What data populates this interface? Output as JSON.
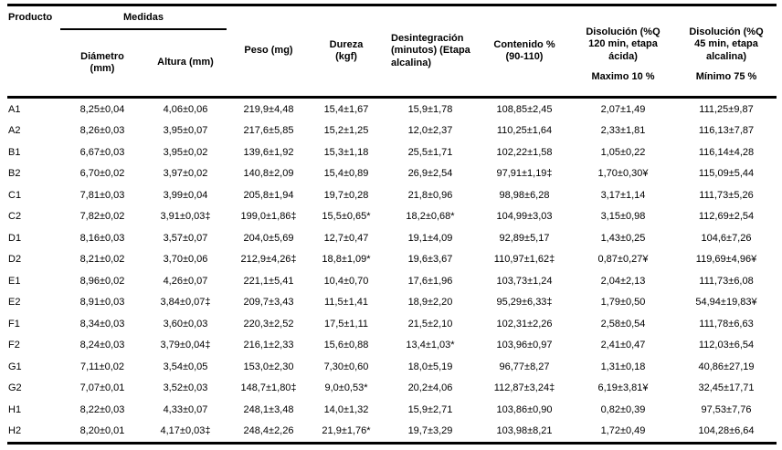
{
  "table": {
    "headers": {
      "producto": "Producto",
      "medidas": "Medidas",
      "diametro": "Diámetro\n(mm)",
      "altura": "Altura (mm)",
      "peso": "Peso (mg)",
      "dureza": "Dureza\n(kgf)",
      "desintegracion": "Desintegración\n(minutos) (Etapa\nalcalina)",
      "contenido": "Contenido %\n(90-110)",
      "disolucion_acida": "Disolución (%Q\n120 min, etapa\nácida)",
      "disolucion_acida_limit": "Maximo 10 %",
      "disolucion_alcalina": "Disolución (%Q\n45 min, etapa\nalcalina)",
      "disolucion_alcalina_limit": "Mínimo 75 %"
    },
    "column_keys": [
      "producto",
      "diametro",
      "altura",
      "peso",
      "dureza",
      "desintegracion",
      "contenido",
      "disolucion_acida",
      "disolucion_alcalina"
    ],
    "rows": [
      [
        "A1",
        "8,25±0,04",
        "4,06±0,06",
        "219,9±4,48",
        "15,4±1,67",
        "15,9±1,78",
        "108,85±2,45",
        "2,07±1,49",
        "111,25±9,87"
      ],
      [
        "A2",
        "8,26±0,03",
        "3,95±0,07",
        "217,6±5,85",
        "15,2±1,25",
        "12,0±2,37",
        "110,25±1,64",
        "2,33±1,81",
        "116,13±7,87"
      ],
      [
        "B1",
        "6,67±0,03",
        "3,95±0,02",
        "139,6±1,92",
        "15,3±1,18",
        "25,5±1,71",
        "102,22±1,58",
        "1,05±0,22",
        "116,14±4,28"
      ],
      [
        "B2",
        "6,70±0,02",
        "3,97±0,02",
        "140,8±2,09",
        "15,4±0,89",
        "26,9±2,54",
        "97,91±1,19‡",
        "1,70±0,30¥",
        "115,09±5,44"
      ],
      [
        "C1",
        "7,81±0,03",
        "3,99±0,04",
        "205,8±1,94",
        "19,7±0,28",
        "21,8±0,96",
        "98,98±6,28",
        "3,17±1,14",
        "111,73±5,26"
      ],
      [
        "C2",
        "7,82±0,02",
        "3,91±0,03‡",
        "199,0±1,86‡",
        "15,5±0,65*",
        "18,2±0,68*",
        "104,99±3,03",
        "3,15±0,98",
        "112,69±2,54"
      ],
      [
        "D1",
        "8,16±0,03",
        "3,57±0,07",
        "204,0±5,69",
        "12,7±0,47",
        "19,1±4,09",
        "92,89±5,17",
        "1,43±0,25",
        "104,6±7,26"
      ],
      [
        "D2",
        "8,21±0,02",
        "3,70±0,06",
        "212,9±4,26‡",
        "18,8±1,09*",
        "19,6±3,67",
        "110,97±1,62‡",
        "0,87±0,27¥",
        "119,69±4,96¥"
      ],
      [
        "E1",
        "8,96±0,02",
        "4,26±0,07",
        "221,1±5,41",
        "10,4±0,70",
        "17,6±1,96",
        "103,73±1,24",
        "2,04±2,13",
        "111,73±6,08"
      ],
      [
        "E2",
        "8,91±0,03",
        "3,84±0,07‡",
        "209,7±3,43",
        "11,5±1,41",
        "18,9±2,20",
        "95,29±6,33‡",
        "1,79±0,50",
        "54,94±19,83¥"
      ],
      [
        "F1",
        "8,34±0,03",
        "3,60±0,03",
        "220,3±2,52",
        "17,5±1,11",
        "21,5±2,10",
        "102,31±2,26",
        "2,58±0,54",
        "111,78±6,63"
      ],
      [
        "F2",
        "8,24±0,03",
        "3,79±0,04‡",
        "216,1±2,33",
        "15,6±0,88",
        "13,4±1,03*",
        "103,96±0,97",
        "2,41±0,47",
        "112,03±6,54"
      ],
      [
        "G1",
        "7,11±0,02",
        "3,54±0,05",
        "153,0±2,30",
        "7,30±0,60",
        "18,0±5,19",
        "96,77±8,27",
        "1,31±0,18",
        "40,86±27,19"
      ],
      [
        "G2",
        "7,07±0,01",
        "3,52±0,03",
        "148,7±1,80‡",
        "9,0±0,53*",
        "20,2±4,06",
        "112,87±3,24‡",
        "6,19±3,81¥",
        "32,45±17,71"
      ],
      [
        "H1",
        "8,22±0,03",
        "4,33±0,07",
        "248,1±3,48",
        "14,0±1,32",
        "15,9±2,71",
        "103,86±0,90",
        "0,82±0,39",
        "97,53±7,76"
      ],
      [
        "H2",
        "8,20±0,01",
        "4,17±0,03‡",
        "248,4±2,26",
        "21,9±1,76*",
        "19,7±3,29",
        "103,98±8,21",
        "1,72±0,49",
        "104,28±6,64"
      ]
    ]
  }
}
